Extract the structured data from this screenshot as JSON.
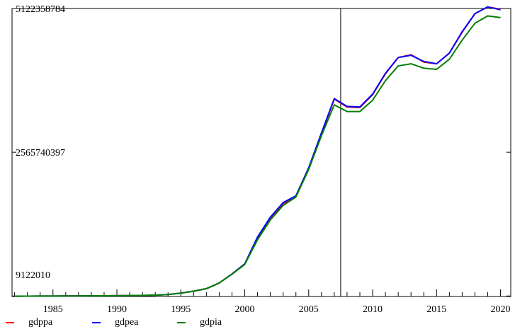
{
  "chart_data": {
    "type": "line",
    "title": "",
    "xlabel": "",
    "ylabel": "",
    "xlim": [
      1981.8,
      2020.8
    ],
    "ylim": [
      0,
      5122358784
    ],
    "x_ticks": [
      1985,
      1990,
      1995,
      2000,
      2005,
      2010,
      2015,
      2020
    ],
    "y_tick_labels": [
      "5122358784",
      "2565740397",
      "9122010"
    ],
    "y_tick_values": [
      5122358784,
      2565740397,
      9122010
    ],
    "vertical_marker_x": 2007.5,
    "legend_position": "bottom-left",
    "grid": false,
    "x": [
      1982,
      1983,
      1984,
      1985,
      1986,
      1987,
      1988,
      1989,
      1990,
      1991,
      1992,
      1993,
      1994,
      1995,
      1996,
      1997,
      1998,
      1999,
      2000,
      2001,
      2002,
      2003,
      2004,
      2005,
      2006,
      2007,
      2008,
      2009,
      2010,
      2011,
      2012,
      2013,
      2014,
      2015,
      2016,
      2017,
      2018,
      2019,
      2020
    ],
    "series": [
      {
        "name": "gdppa",
        "color": "#ff0000",
        "values": [
          5000000,
          6000000,
          7000000,
          8000000,
          9000000,
          10000000,
          11000000,
          12000000,
          14000000,
          16000000,
          19000000,
          24000000,
          35000000,
          60000000,
          95000000,
          140000000,
          240000000,
          400000000,
          580000000,
          1040000000,
          1390000000,
          1650000000,
          1780000000,
          2280000000,
          2900000000,
          3510000000,
          3370000000,
          3360000000,
          3590000000,
          3960000000,
          4250000000,
          4300000000,
          4170000000,
          4140000000,
          4330000000,
          4700000000,
          5030000000,
          5150000000,
          5110000000
        ]
      },
      {
        "name": "gdpea",
        "color": "#0000ff",
        "values": [
          5000000,
          6000000,
          7000000,
          8000000,
          9000000,
          10000000,
          11000000,
          12000000,
          14000000,
          16000000,
          19000000,
          24000000,
          35000000,
          60000000,
          95000000,
          140000000,
          240000000,
          400000000,
          580000000,
          1060000000,
          1410000000,
          1670000000,
          1790000000,
          2290000000,
          2910000000,
          3520000000,
          3380000000,
          3370000000,
          3600000000,
          3970000000,
          4250000000,
          4290000000,
          4180000000,
          4140000000,
          4330000000,
          4710000000,
          5030000000,
          5150000000,
          5100000000
        ]
      },
      {
        "name": "gdpia",
        "color": "#008000",
        "values": [
          5000000,
          6000000,
          7000000,
          8000000,
          9000000,
          10000000,
          11000000,
          12000000,
          14000000,
          16000000,
          19000000,
          24000000,
          35000000,
          60000000,
          95000000,
          140000000,
          240000000,
          395000000,
          570000000,
          1010000000,
          1360000000,
          1620000000,
          1770000000,
          2260000000,
          2860000000,
          3410000000,
          3290000000,
          3290000000,
          3490000000,
          3840000000,
          4100000000,
          4140000000,
          4060000000,
          4040000000,
          4220000000,
          4560000000,
          4860000000,
          4990000000,
          4960000000
        ]
      }
    ]
  }
}
